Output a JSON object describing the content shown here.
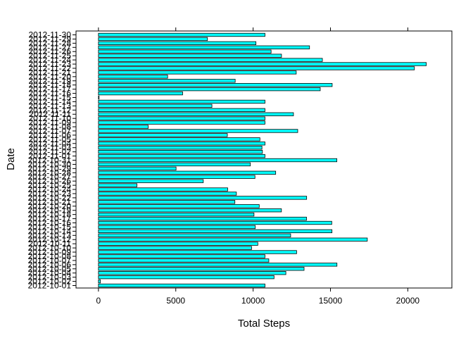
{
  "chart_data": {
    "type": "bar",
    "orientation": "horizontal",
    "xlabel": "Total Steps",
    "ylabel": "Date",
    "xlim": [
      -1450,
      22850
    ],
    "x_ticks": [
      0,
      5000,
      10000,
      15000,
      20000
    ],
    "bar_fill": "#00FFFF",
    "bar_stroke": "#000000",
    "categories": [
      "2012-10-01",
      "2012-10-02",
      "2012-10-03",
      "2012-10-04",
      "2012-10-05",
      "2012-10-06",
      "2012-10-07",
      "2012-10-08",
      "2012-10-09",
      "2012-10-10",
      "2012-10-11",
      "2012-10-12",
      "2012-10-13",
      "2012-10-14",
      "2012-10-15",
      "2012-10-16",
      "2012-10-17",
      "2012-10-18",
      "2012-10-19",
      "2012-10-20",
      "2012-10-21",
      "2012-10-22",
      "2012-10-23",
      "2012-10-24",
      "2012-10-25",
      "2012-10-26",
      "2012-10-27",
      "2012-10-28",
      "2012-10-29",
      "2012-10-30",
      "2012-10-31",
      "2012-11-01",
      "2012-11-02",
      "2012-11-03",
      "2012-11-04",
      "2012-11-05",
      "2012-11-06",
      "2012-11-07",
      "2012-11-08",
      "2012-11-09",
      "2012-11-10",
      "2012-11-11",
      "2012-11-12",
      "2012-11-13",
      "2012-11-14",
      "2012-11-15",
      "2012-11-16",
      "2012-11-17",
      "2012-11-18",
      "2012-11-19",
      "2012-11-20",
      "2012-11-21",
      "2012-11-22",
      "2012-11-23",
      "2012-11-24",
      "2012-11-25",
      "2012-11-26",
      "2012-11-27",
      "2012-11-28",
      "2012-11-29",
      "2012-11-30"
    ],
    "values": [
      10766,
      126,
      11352,
      12116,
      13294,
      15420,
      11015,
      10766,
      12811,
      9900,
      10304,
      17382,
      12426,
      15098,
      10139,
      15084,
      13452,
      10056,
      11829,
      10395,
      8821,
      13460,
      8918,
      8355,
      2492,
      6778,
      10119,
      11458,
      5018,
      9819,
      15414,
      10766,
      10600,
      10571,
      10766,
      10439,
      8334,
      12883,
      3219,
      10766,
      10766,
      12608,
      10765,
      7336,
      10766,
      41,
      5441,
      14339,
      15110,
      8841,
      4472,
      12787,
      20427,
      21194,
      14478,
      11834,
      11162,
      13646,
      10183,
      7047,
      10766
    ]
  }
}
